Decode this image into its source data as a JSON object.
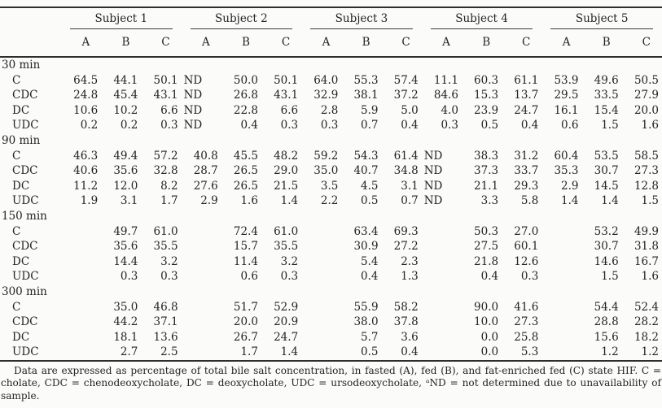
{
  "table": {
    "subjects": [
      "Subject 1",
      "Subject 2",
      "Subject 3",
      "Subject 4",
      "Subject 5"
    ],
    "conditions": [
      "A",
      "B",
      "C"
    ],
    "sections": [
      {
        "time": "30 min",
        "rows": [
          {
            "label": "C",
            "values": [
              "64.5",
              "44.1",
              "50.1",
              "ND",
              "50.0",
              "50.1",
              "64.0",
              "55.3",
              "57.4",
              "11.1",
              "60.3",
              "61.1",
              "53.9",
              "49.6",
              "50.5"
            ]
          },
          {
            "label": "CDC",
            "values": [
              "24.8",
              "45.4",
              "43.1",
              "ND",
              "26.8",
              "43.1",
              "32.9",
              "38.1",
              "37.2",
              "84.6",
              "15.3",
              "13.7",
              "29.5",
              "33.5",
              "27.9"
            ]
          },
          {
            "label": "DC",
            "values": [
              "10.6",
              "10.2",
              "6.6",
              "ND",
              "22.8",
              "6.6",
              "2.8",
              "5.9",
              "5.0",
              "4.0",
              "23.9",
              "24.7",
              "16.1",
              "15.4",
              "20.0"
            ]
          },
          {
            "label": "UDC",
            "values": [
              "0.2",
              "0.2",
              "0.3",
              "ND",
              "0.4",
              "0.3",
              "0.3",
              "0.7",
              "0.4",
              "0.3",
              "0.5",
              "0.4",
              "0.6",
              "1.5",
              "1.6"
            ]
          }
        ]
      },
      {
        "time": "90 min",
        "rows": [
          {
            "label": "C",
            "values": [
              "46.3",
              "49.4",
              "57.2",
              "40.8",
              "45.5",
              "48.2",
              "59.2",
              "54.3",
              "61.4",
              "ND",
              "38.3",
              "31.2",
              "60.4",
              "53.5",
              "58.5"
            ]
          },
          {
            "label": "CDC",
            "values": [
              "40.6",
              "35.6",
              "32.8",
              "28.7",
              "26.5",
              "29.0",
              "35.0",
              "40.7",
              "34.8",
              "ND",
              "37.3",
              "33.7",
              "35.3",
              "30.7",
              "27.3"
            ]
          },
          {
            "label": "DC",
            "values": [
              "11.2",
              "12.0",
              "8.2",
              "27.6",
              "26.5",
              "21.5",
              "3.5",
              "4.5",
              "3.1",
              "ND",
              "21.1",
              "29.3",
              "2.9",
              "14.5",
              "12.8"
            ]
          },
          {
            "label": "UDC",
            "values": [
              "1.9",
              "3.1",
              "1.7",
              "2.9",
              "1.6",
              "1.4",
              "2.2",
              "0.5",
              "0.7",
              "ND",
              "3.3",
              "5.8",
              "1.4",
              "1.4",
              "1.5"
            ]
          }
        ]
      },
      {
        "time": "150 min",
        "rows": [
          {
            "label": "C",
            "values": [
              "",
              "49.7",
              "61.0",
              "",
              "72.4",
              "61.0",
              "",
              "63.4",
              "69.3",
              "",
              "50.3",
              "27.0",
              "",
              "53.2",
              "49.9"
            ]
          },
          {
            "label": "CDC",
            "values": [
              "",
              "35.6",
              "35.5",
              "",
              "15.7",
              "35.5",
              "",
              "30.9",
              "27.2",
              "",
              "27.5",
              "60.1",
              "",
              "30.7",
              "31.8"
            ]
          },
          {
            "label": "DC",
            "values": [
              "",
              "14.4",
              "3.2",
              "",
              "11.4",
              "3.2",
              "",
              "5.4",
              "2.3",
              "",
              "21.8",
              "12.6",
              "",
              "14.6",
              "16.7"
            ]
          },
          {
            "label": "UDC",
            "values": [
              "",
              "0.3",
              "0.3",
              "",
              "0.6",
              "0.3",
              "",
              "0.4",
              "1.3",
              "",
              "0.4",
              "0.3",
              "",
              "1.5",
              "1.6"
            ]
          }
        ]
      },
      {
        "time": "300 min",
        "rows": [
          {
            "label": "C",
            "values": [
              "",
              "35.0",
              "46.8",
              "",
              "51.7",
              "52.9",
              "",
              "55.9",
              "58.2",
              "",
              "90.0",
              "41.6",
              "",
              "54.4",
              "52.4"
            ]
          },
          {
            "label": "CDC",
            "values": [
              "",
              "44.2",
              "37.1",
              "",
              "20.0",
              "20.9",
              "",
              "38.0",
              "37.8",
              "",
              "10.0",
              "27.3",
              "",
              "28.8",
              "28.2"
            ]
          },
          {
            "label": "DC",
            "values": [
              "",
              "18.1",
              "13.6",
              "",
              "26.7",
              "24.7",
              "",
              "5.7",
              "3.6",
              "",
              "0.0",
              "25.8",
              "",
              "15.6",
              "18.2"
            ]
          },
          {
            "label": "UDC",
            "values": [
              "",
              "2.7",
              "2.5",
              "",
              "1.7",
              "1.4",
              "",
              "0.5",
              "0.4",
              "",
              "0.0",
              "5.3",
              "",
              "1.2",
              "1.2"
            ]
          }
        ]
      }
    ]
  },
  "footnote": "Data are expressed as percentage of total bile salt concentration, in fasted (A), fed (B), and fat-enriched fed (C) state HIF. C = cholate, CDC = chenodeoxycholate, DC = deoxycholate, UDC = ursodeoxycholate, ᵃND = not determined due to unavailability of sample."
}
